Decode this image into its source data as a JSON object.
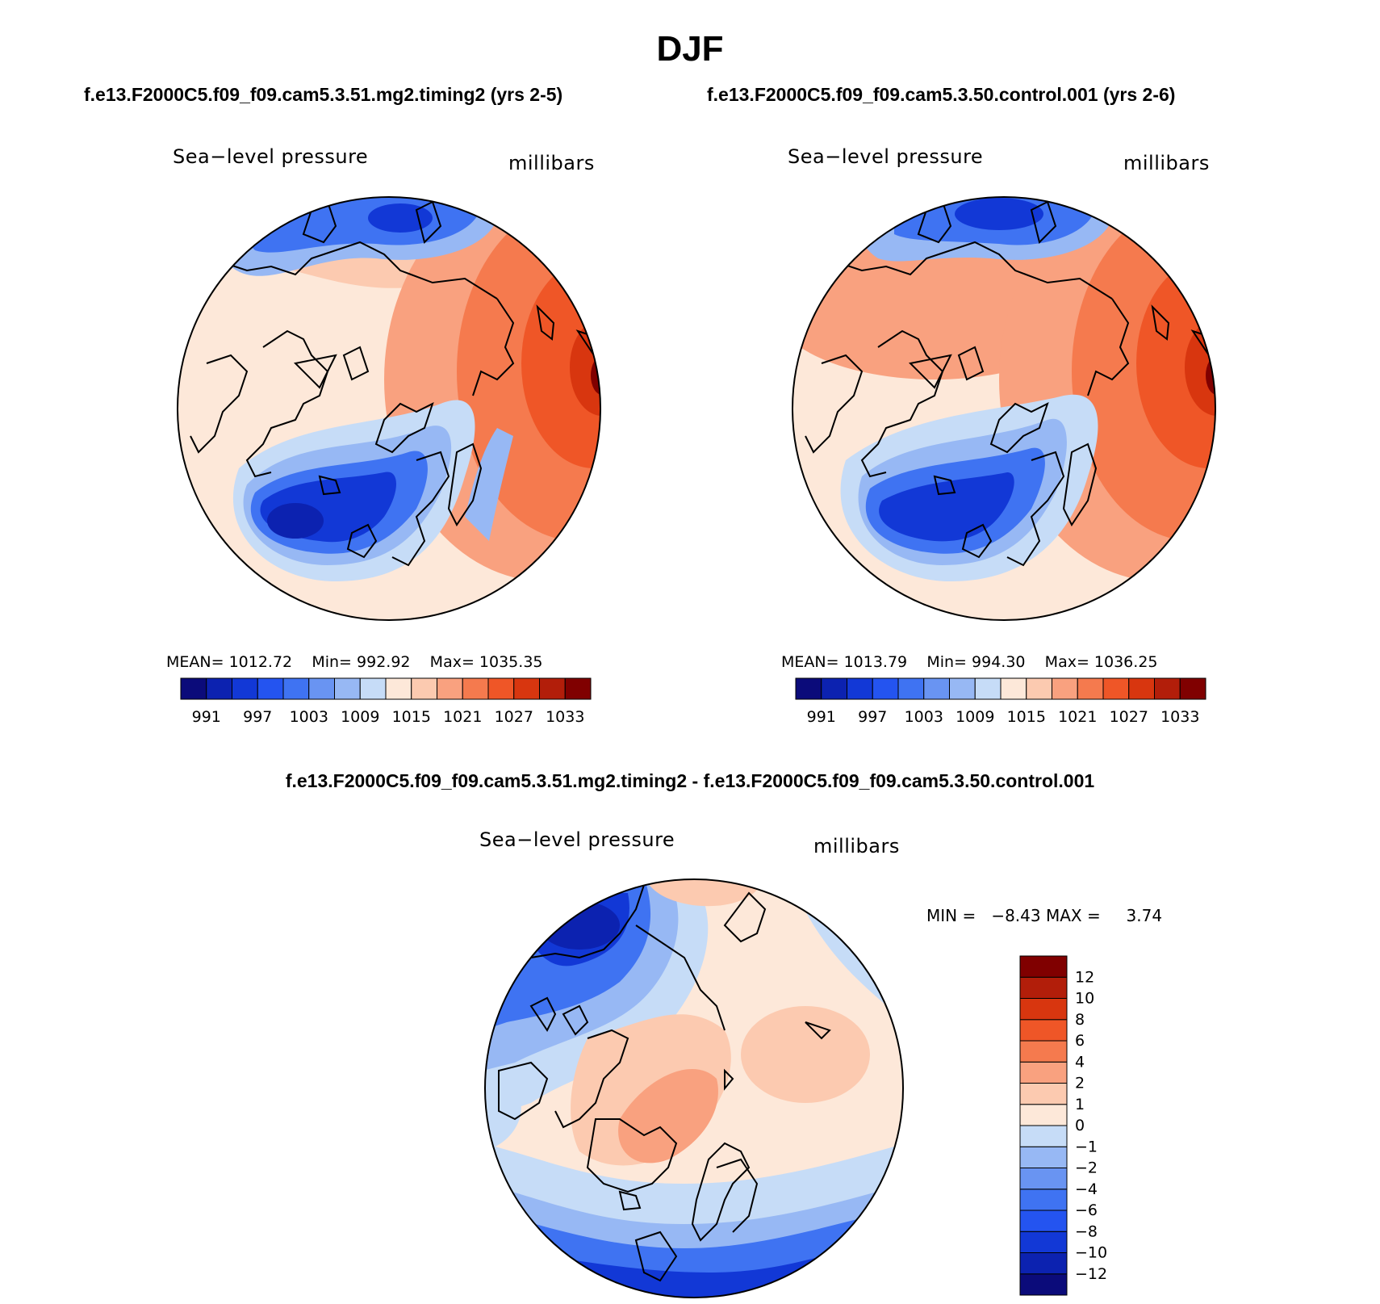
{
  "figure": {
    "title": "DJF",
    "test_case": "f.e13.F2000C5.f09_f09.cam5.3.51.mg2.timing2 (yrs 2-5)",
    "control_case": "f.e13.F2000C5.f09_f09.cam5.3.50.control.001 (yrs 2-6)",
    "diff_title": "f.e13.F2000C5.f09_f09.cam5.3.51.mg2.timing2 - f.e13.F2000C5.f09_f09.cam5.3.50.control.001"
  },
  "panels": [
    {
      "id": "test",
      "field": "Sea−level pressure",
      "units": "millibars",
      "mean_label": "MEAN=",
      "mean": "1012.72",
      "min_label": "Min=",
      "min": "992.92",
      "max_label": "Max=",
      "max": "1035.35"
    },
    {
      "id": "control",
      "field": "Sea−level pressure",
      "units": "millibars",
      "mean_label": "MEAN=",
      "mean": "1013.79",
      "min_label": "Min=",
      "min": "994.30",
      "max_label": "Max=",
      "max": "1036.25"
    }
  ],
  "diff_panel": {
    "field": "Sea−level pressure",
    "units": "millibars",
    "min_label": "MIN =",
    "min": "−8.43",
    "max_label": "MAX =",
    "max": "3.74"
  },
  "colorbar_abs": {
    "colors": [
      "#0b0b7a",
      "#0c22b0",
      "#1238d6",
      "#2454f0",
      "#3f73f2",
      "#6994f2",
      "#97b8f4",
      "#c6dcf7",
      "#fde8d9",
      "#fccab0",
      "#f9a17f",
      "#f57a4e",
      "#ef5627",
      "#d8360f",
      "#b21e0a",
      "#800000"
    ],
    "labels": [
      "991",
      "997",
      "1003",
      "1009",
      "1015",
      "1021",
      "1027",
      "1033"
    ]
  },
  "colorbar_diff": {
    "colors": [
      "#0b0b7a",
      "#0c22b0",
      "#1238d6",
      "#2454f0",
      "#3f73f2",
      "#6994f2",
      "#97b8f4",
      "#c6dcf7",
      "#fde8d9",
      "#fccab0",
      "#f9a17f",
      "#f57a4e",
      "#ef5627",
      "#d8360f",
      "#b21e0a",
      "#800000"
    ],
    "labels": [
      "−12",
      "−10",
      "−8",
      "−6",
      "−4",
      "−2",
      "−1",
      "0",
      "1",
      "2",
      "4",
      "6",
      "8",
      "10",
      "12"
    ]
  },
  "map_palette": {
    "deep_blue": "#0c22b0",
    "blue": "#2454f0",
    "mid_blue": "#3f73f2",
    "light_blue": "#97b8f4",
    "pale_blue": "#c6dcf7",
    "pale_peach": "#fde8d9",
    "peach": "#fccab0",
    "salmon": "#f9a17f",
    "orange": "#f57a4e",
    "red_orange": "#ef5627",
    "red": "#d8360f",
    "dark_red": "#b21e0a"
  }
}
